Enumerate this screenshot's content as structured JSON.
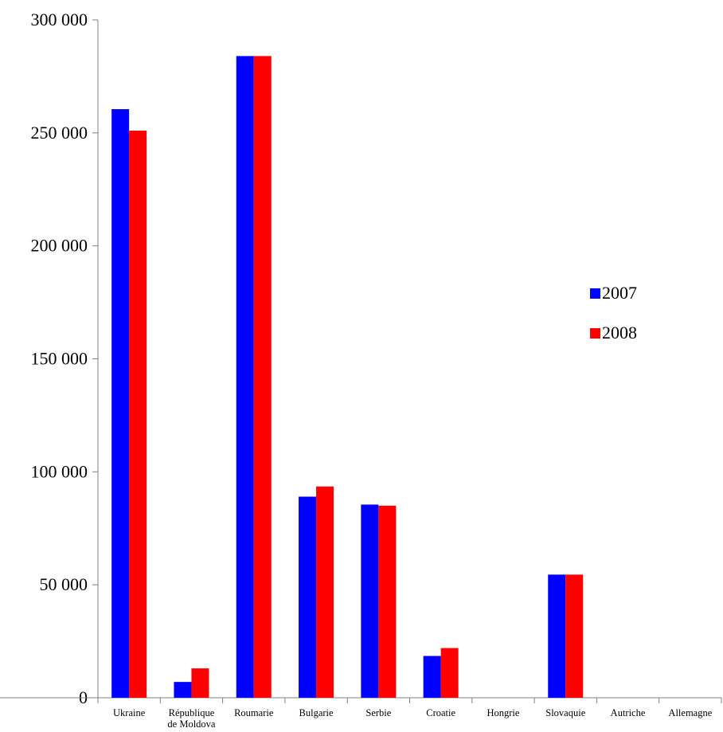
{
  "chart_data": {
    "type": "bar",
    "title": "",
    "xlabel": "",
    "ylabel": "",
    "categories": [
      [
        "Ukraine"
      ],
      [
        "République",
        "de Moldova"
      ],
      [
        "Roumarie"
      ],
      [
        "Bulgarie"
      ],
      [
        "Serbie"
      ],
      [
        "Croatie"
      ],
      [
        "Hongrie"
      ],
      [
        "Slovaquie"
      ],
      [
        "Autriche"
      ],
      [
        "Allemagne"
      ]
    ],
    "series": [
      {
        "name": "2007",
        "color": "#0000ff",
        "values": [
          260500,
          7000,
          284000,
          89000,
          85500,
          18500,
          0,
          54500,
          0,
          0
        ]
      },
      {
        "name": "2008",
        "color": "#ff0000",
        "values": [
          251000,
          13000,
          284000,
          93500,
          85000,
          22000,
          0,
          54500,
          0,
          0
        ]
      }
    ],
    "ylim": [
      0,
      300000
    ],
    "yticks": [
      0,
      50000,
      100000,
      150000,
      200000,
      250000,
      300000
    ],
    "ytick_labels": [
      "0",
      "50 000",
      "100 000",
      "150 000",
      "200 000",
      "250 000",
      "300 000"
    ],
    "grid": false,
    "legend_position": "right"
  }
}
